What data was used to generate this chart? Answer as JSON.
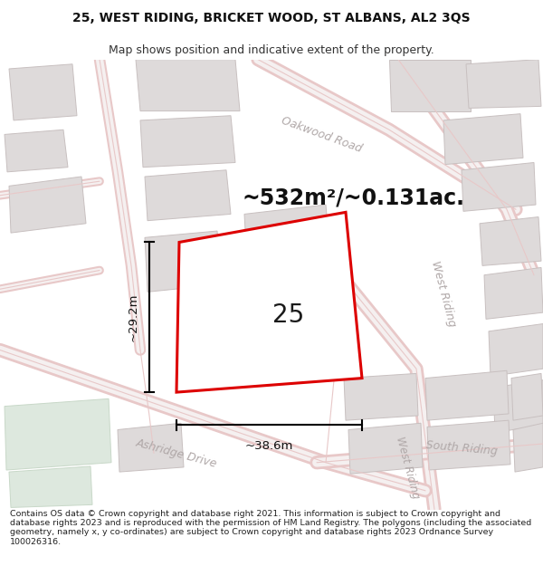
{
  "title_line1": "25, WEST RIDING, BRICKET WOOD, ST ALBANS, AL2 3QS",
  "title_line2": "Map shows position and indicative extent of the property.",
  "area_text": "~532m²/~0.131ac.",
  "property_number": "25",
  "dim_width": "~38.6m",
  "dim_height": "~29.2m",
  "footer_text": "Contains OS data © Crown copyright and database right 2021. This information is subject to Crown copyright and database rights 2023 and is reproduced with the permission of HM Land Registry. The polygons (including the associated geometry, namely x, y co-ordinates) are subject to Crown copyright and database rights 2023 Ordnance Survey 100026316.",
  "bg_color": "#ffffff",
  "map_bg": "#f7f4f4",
  "road_stroke": "#e8c8c8",
  "building_fill": "#dedada",
  "building_edge": "#c8c0c0",
  "property_fill": "#ffffff",
  "property_edge": "#dd0000",
  "road_label_color": "#b0a8a8",
  "title_fontsize": 10,
  "subtitle_fontsize": 9,
  "area_fontsize": 17,
  "property_num_fontsize": 20,
  "dim_fontsize": 9.5,
  "footer_fontsize": 6.8
}
